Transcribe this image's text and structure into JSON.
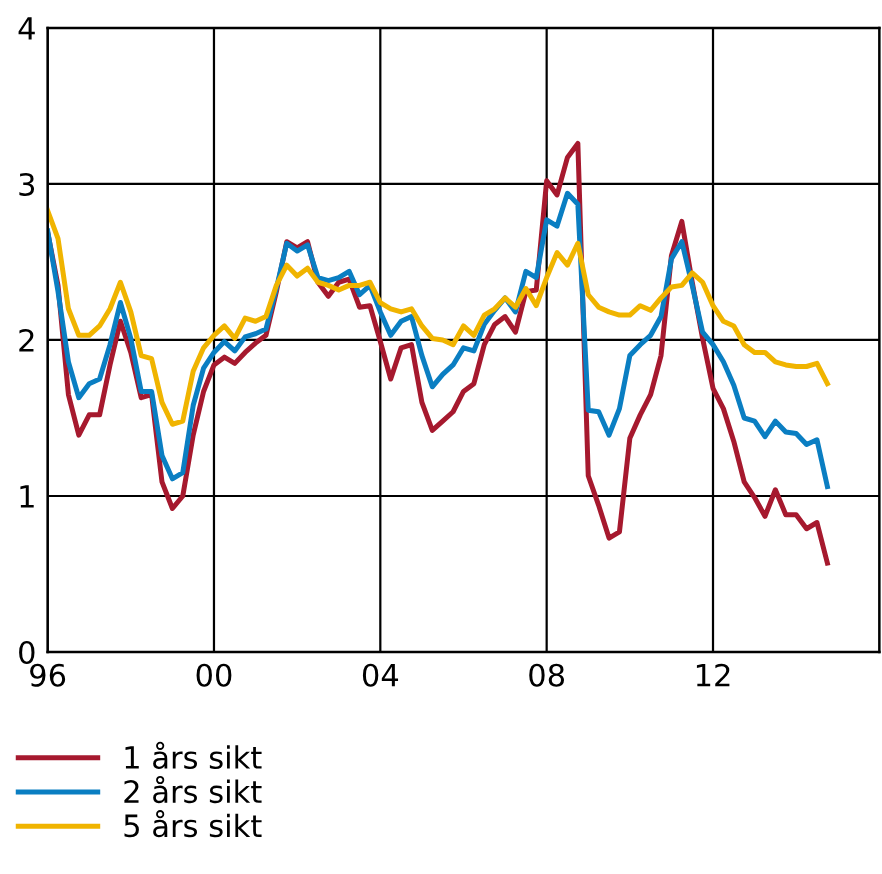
{
  "chart_data": {
    "type": "line",
    "x": [
      1996.0,
      1996.25,
      1996.5,
      1996.75,
      1997.0,
      1997.25,
      1997.5,
      1997.75,
      1998.0,
      1998.25,
      1998.5,
      1998.75,
      1999.0,
      1999.25,
      1999.5,
      1999.75,
      2000.0,
      2000.25,
      2000.5,
      2000.75,
      2001.0,
      2001.25,
      2001.5,
      2001.75,
      2002.0,
      2002.25,
      2002.5,
      2002.75,
      2003.0,
      2003.25,
      2003.5,
      2003.75,
      2004.0,
      2004.25,
      2004.5,
      2004.75,
      2005.0,
      2005.25,
      2005.5,
      2005.75,
      2006.0,
      2006.25,
      2006.5,
      2006.75,
      2007.0,
      2007.25,
      2007.5,
      2007.75,
      2008.0,
      2008.25,
      2008.5,
      2008.75,
      2009.0,
      2009.25,
      2009.5,
      2009.75,
      2010.0,
      2010.25,
      2010.5,
      2010.75,
      2011.0,
      2011.25,
      2011.5,
      2011.75,
      2012.0,
      2012.25,
      2012.5,
      2012.75,
      2013.0,
      2013.25,
      2013.5,
      2013.75,
      2014.0,
      2014.25,
      2014.5,
      2014.75
    ],
    "series": [
      {
        "name": "1 års sikt",
        "color": "#a6192e",
        "values": [
          2.69,
          2.35,
          1.65,
          1.39,
          1.52,
          1.52,
          1.84,
          2.12,
          1.92,
          1.63,
          1.65,
          1.09,
          0.92,
          1.0,
          1.39,
          1.67,
          1.84,
          1.89,
          1.85,
          1.92,
          1.98,
          2.03,
          2.31,
          2.63,
          2.59,
          2.63,
          2.37,
          2.28,
          2.37,
          2.39,
          2.21,
          2.22,
          1.99,
          1.75,
          1.95,
          1.97,
          1.6,
          1.42,
          1.48,
          1.54,
          1.67,
          1.72,
          1.97,
          2.1,
          2.15,
          2.05,
          2.31,
          2.32,
          3.02,
          2.93,
          3.17,
          3.26,
          1.13,
          0.94,
          0.73,
          0.77,
          1.37,
          1.52,
          1.65,
          1.9,
          2.54,
          2.76,
          2.37,
          2.01,
          1.69,
          1.56,
          1.35,
          1.09,
          0.99,
          0.87,
          1.04,
          0.88,
          0.88,
          0.79,
          0.83,
          0.57
        ]
      },
      {
        "name": "2 års sikt",
        "color": "#0a7ec2",
        "values": [
          2.7,
          2.31,
          1.86,
          1.63,
          1.72,
          1.75,
          1.97,
          2.24,
          2.01,
          1.67,
          1.67,
          1.26,
          1.11,
          1.15,
          1.58,
          1.82,
          1.92,
          1.99,
          1.93,
          2.02,
          2.04,
          2.07,
          2.33,
          2.62,
          2.57,
          2.61,
          2.4,
          2.38,
          2.4,
          2.44,
          2.29,
          2.35,
          2.18,
          2.03,
          2.12,
          2.15,
          1.9,
          1.7,
          1.78,
          1.84,
          1.95,
          1.93,
          2.1,
          2.19,
          2.27,
          2.18,
          2.44,
          2.4,
          2.77,
          2.73,
          2.94,
          2.87,
          1.55,
          1.54,
          1.39,
          1.56,
          1.9,
          1.97,
          2.03,
          2.15,
          2.52,
          2.63,
          2.35,
          2.05,
          1.97,
          1.86,
          1.71,
          1.5,
          1.48,
          1.38,
          1.48,
          1.41,
          1.4,
          1.33,
          1.36,
          1.06
        ]
      },
      {
        "name": "5 års sikt",
        "color": "#f0b400",
        "values": [
          2.83,
          2.65,
          2.2,
          2.03,
          2.03,
          2.09,
          2.2,
          2.37,
          2.18,
          1.9,
          1.88,
          1.6,
          1.46,
          1.48,
          1.8,
          1.95,
          2.03,
          2.09,
          2.01,
          2.14,
          2.12,
          2.15,
          2.35,
          2.48,
          2.41,
          2.46,
          2.37,
          2.35,
          2.32,
          2.35,
          2.35,
          2.37,
          2.24,
          2.2,
          2.18,
          2.2,
          2.09,
          2.01,
          2.0,
          1.97,
          2.09,
          2.03,
          2.16,
          2.2,
          2.27,
          2.21,
          2.33,
          2.22,
          2.4,
          2.56,
          2.48,
          2.62,
          2.29,
          2.21,
          2.18,
          2.16,
          2.16,
          2.22,
          2.19,
          2.27,
          2.34,
          2.35,
          2.43,
          2.37,
          2.22,
          2.12,
          2.09,
          1.97,
          1.92,
          1.92,
          1.86,
          1.84,
          1.83,
          1.83,
          1.85,
          1.72
        ]
      }
    ],
    "xlim": [
      1996,
      2016
    ],
    "xticks": [
      {
        "value": 1996,
        "label": "96"
      },
      {
        "value": 2000,
        "label": "00"
      },
      {
        "value": 2004,
        "label": "04"
      },
      {
        "value": 2008,
        "label": "08"
      },
      {
        "value": 2012,
        "label": "12"
      }
    ],
    "ylim": [
      0,
      4
    ],
    "yticks": [
      0,
      1,
      2,
      3,
      4
    ],
    "grid": true,
    "legend": "bottom left",
    "line_style": "solid",
    "marker": "none"
  }
}
